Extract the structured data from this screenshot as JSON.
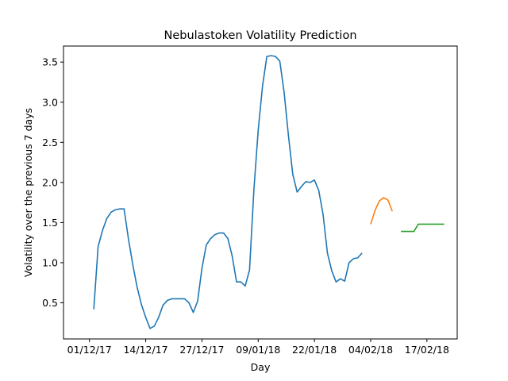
{
  "chart_data": {
    "type": "line",
    "title": "Nebulastoken Volatility Prediction",
    "xlabel": "Day",
    "ylabel": "Volatility over the previous 7 days",
    "x_axis": {
      "kind": "date",
      "range": [
        "2017-11-25",
        "2018-02-24"
      ],
      "ticks": [
        {
          "date": "2017-12-01",
          "label": "01/12/17"
        },
        {
          "date": "2017-12-14",
          "label": "14/12/17"
        },
        {
          "date": "2017-12-27",
          "label": "27/12/17"
        },
        {
          "date": "2018-01-09",
          "label": "09/01/18"
        },
        {
          "date": "2018-01-22",
          "label": "22/01/18"
        },
        {
          "date": "2018-02-04",
          "label": "04/02/18"
        },
        {
          "date": "2018-02-17",
          "label": "17/02/18"
        }
      ]
    },
    "y_axis": {
      "range": [
        0.05,
        3.7
      ],
      "ticks": [
        {
          "value": 0.5,
          "label": "0.5"
        },
        {
          "value": 1.0,
          "label": "1.0"
        },
        {
          "value": 1.5,
          "label": "1.5"
        },
        {
          "value": 2.0,
          "label": "2.0"
        },
        {
          "value": 2.5,
          "label": "2.5"
        },
        {
          "value": 3.0,
          "label": "3.0"
        },
        {
          "value": 3.5,
          "label": "3.5"
        }
      ]
    },
    "grid": false,
    "legend": false,
    "series": [
      {
        "color": "#1f77b4",
        "points": [
          [
            "2017-12-02",
            0.42
          ],
          [
            "2017-12-03",
            1.2
          ],
          [
            "2017-12-04",
            1.4
          ],
          [
            "2017-12-05",
            1.55
          ],
          [
            "2017-12-06",
            1.63
          ],
          [
            "2017-12-07",
            1.66
          ],
          [
            "2017-12-08",
            1.67
          ],
          [
            "2017-12-09",
            1.67
          ],
          [
            "2017-12-10",
            1.3
          ],
          [
            "2017-12-11",
            0.98
          ],
          [
            "2017-12-12",
            0.7
          ],
          [
            "2017-12-13",
            0.48
          ],
          [
            "2017-12-14",
            0.32
          ],
          [
            "2017-12-15",
            0.18
          ],
          [
            "2017-12-16",
            0.21
          ],
          [
            "2017-12-17",
            0.32
          ],
          [
            "2017-12-18",
            0.47
          ],
          [
            "2017-12-19",
            0.53
          ],
          [
            "2017-12-20",
            0.55
          ],
          [
            "2017-12-21",
            0.55
          ],
          [
            "2017-12-22",
            0.55
          ],
          [
            "2017-12-23",
            0.55
          ],
          [
            "2017-12-24",
            0.5
          ],
          [
            "2017-12-25",
            0.38
          ],
          [
            "2017-12-26",
            0.52
          ],
          [
            "2017-12-27",
            0.93
          ],
          [
            "2017-12-28",
            1.22
          ],
          [
            "2017-12-29",
            1.3
          ],
          [
            "2017-12-30",
            1.35
          ],
          [
            "2017-12-31",
            1.37
          ],
          [
            "2018-01-01",
            1.37
          ],
          [
            "2018-01-02",
            1.3
          ],
          [
            "2018-01-03",
            1.08
          ],
          [
            "2018-01-04",
            0.76
          ],
          [
            "2018-01-05",
            0.76
          ],
          [
            "2018-01-06",
            0.71
          ],
          [
            "2018-01-07",
            0.91
          ],
          [
            "2018-01-08",
            1.9
          ],
          [
            "2018-01-09",
            2.65
          ],
          [
            "2018-01-10",
            3.2
          ],
          [
            "2018-01-11",
            3.57
          ],
          [
            "2018-01-12",
            3.58
          ],
          [
            "2018-01-13",
            3.57
          ],
          [
            "2018-01-14",
            3.51
          ],
          [
            "2018-01-15",
            3.12
          ],
          [
            "2018-01-16",
            2.58
          ],
          [
            "2018-01-17",
            2.1
          ],
          [
            "2018-01-18",
            1.88
          ],
          [
            "2018-01-19",
            1.95
          ],
          [
            "2018-01-20",
            2.01
          ],
          [
            "2018-01-21",
            2.0
          ],
          [
            "2018-01-22",
            2.03
          ],
          [
            "2018-01-23",
            1.9
          ],
          [
            "2018-01-24",
            1.6
          ],
          [
            "2018-01-25",
            1.12
          ],
          [
            "2018-01-26",
            0.9
          ],
          [
            "2018-01-27",
            0.76
          ],
          [
            "2018-01-28",
            0.8
          ],
          [
            "2018-01-29",
            0.77
          ],
          [
            "2018-01-30",
            1.0
          ],
          [
            "2018-01-31",
            1.05
          ],
          [
            "2018-02-01",
            1.06
          ],
          [
            "2018-02-02",
            1.12
          ]
        ]
      },
      {
        "color": "#ff7f0e",
        "points": [
          [
            "2018-02-04",
            1.48
          ],
          [
            "2018-02-05",
            1.65
          ],
          [
            "2018-02-06",
            1.77
          ],
          [
            "2018-02-07",
            1.81
          ],
          [
            "2018-02-08",
            1.78
          ],
          [
            "2018-02-09",
            1.64
          ]
        ]
      },
      {
        "color": "#2ca02c",
        "points": [
          [
            "2018-02-11",
            1.39
          ],
          [
            "2018-02-12",
            1.39
          ],
          [
            "2018-02-13",
            1.39
          ],
          [
            "2018-02-14",
            1.39
          ],
          [
            "2018-02-15",
            1.48
          ],
          [
            "2018-02-16",
            1.48
          ],
          [
            "2018-02-17",
            1.48
          ],
          [
            "2018-02-18",
            1.48
          ],
          [
            "2018-02-19",
            1.48
          ],
          [
            "2018-02-20",
            1.48
          ],
          [
            "2018-02-21",
            1.48
          ]
        ]
      }
    ]
  }
}
